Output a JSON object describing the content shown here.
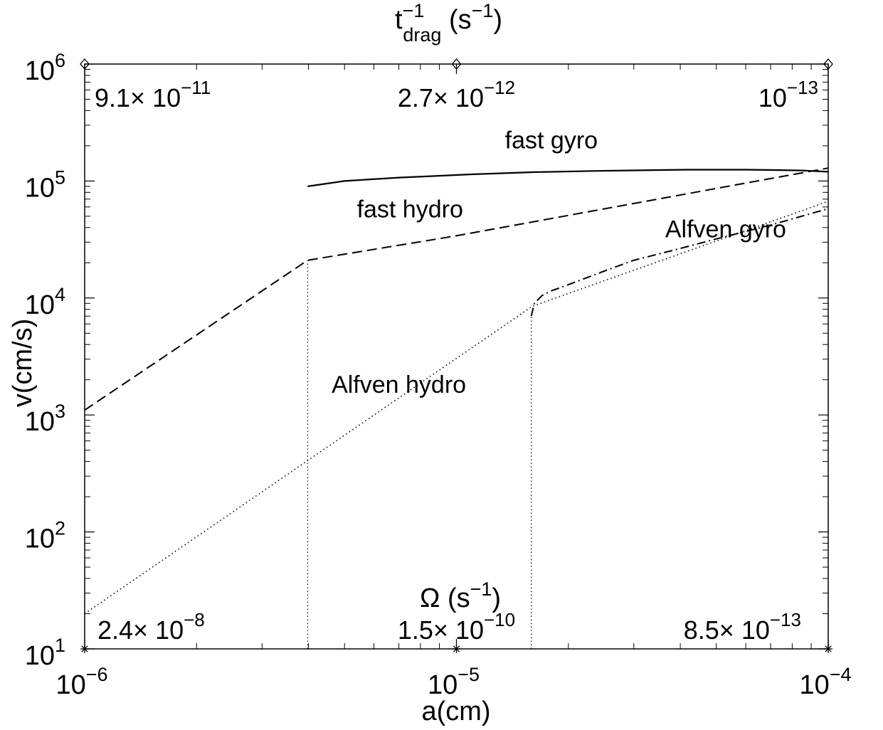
{
  "chart_data": {
    "type": "line",
    "xscale": "log",
    "yscale": "log",
    "xlim": [
      1e-06,
      0.0001
    ],
    "ylim": [
      10,
      1000000
    ],
    "xlabel": "a(cm)",
    "ylabel": "v(cm/s)",
    "top_axis_label": {
      "base": "t",
      "sup": "−1",
      "sub": "drag",
      "unit": "(s",
      "unit_sup": "−1",
      "close": ")"
    },
    "omega_label": {
      "symbol": "Ω",
      "unit": "(s",
      "unit_sup": "−1",
      "close": ")"
    },
    "x_ticks": [
      {
        "value": 1e-06,
        "base": "10",
        "exp": "−6"
      },
      {
        "value": 1e-05,
        "base": "10",
        "exp": "−5"
      },
      {
        "value": 0.0001,
        "base": "10",
        "exp": "−4"
      }
    ],
    "y_ticks": [
      {
        "value": 10,
        "base": "10",
        "exp": "1"
      },
      {
        "value": 100,
        "base": "10",
        "exp": "2"
      },
      {
        "value": 1000,
        "base": "10",
        "exp": "3"
      },
      {
        "value": 10000,
        "base": "10",
        "exp": "4"
      },
      {
        "value": 100000,
        "base": "10",
        "exp": "5"
      },
      {
        "value": 1000000,
        "base": "10",
        "exp": "6"
      }
    ],
    "top_annotations": [
      {
        "x": 1e-06,
        "mantissa": "9.1× 10",
        "exp": "−11"
      },
      {
        "x": 1e-05,
        "mantissa": "2.7× 10",
        "exp": "−12"
      },
      {
        "x": 0.0001,
        "mantissa": "10",
        "exp": "−13"
      }
    ],
    "bottom_annotations": [
      {
        "x": 1e-06,
        "mantissa": "2.4× 10",
        "exp": "−8"
      },
      {
        "x": 1e-05,
        "mantissa": "1.5× 10",
        "exp": "−10"
      },
      {
        "x": 0.0001,
        "mantissa": "8.5× 10",
        "exp": "−13"
      }
    ],
    "series": [
      {
        "name": "fast gyro",
        "style": "solid",
        "x": [
          3.98e-06,
          5e-06,
          7e-06,
          1.1e-05,
          1.6e-05,
          2.4e-05,
          3.5e-05,
          4.2e-05,
          5e-05,
          6e-05,
          7.2e-05,
          8.5e-05,
          0.0001
        ],
        "y": [
          90000,
          100000,
          107000,
          114000,
          119000,
          122000,
          124000,
          125000,
          125000,
          125000,
          124000,
          123000,
          120000
        ]
      },
      {
        "name": "fast hydro",
        "style": "dashed",
        "x": [
          1e-06,
          3.98e-06,
          3.98e-06,
          1e-05,
          0.0001
        ],
        "y": [
          1100,
          21000,
          21000,
          34000,
          129000
        ]
      },
      {
        "name": "Alfven gyro",
        "style": "dashdot",
        "x": [
          1.59e-05,
          1.62e-05,
          1.7e-05,
          1.8e-05,
          2e-05,
          2.5e-05,
          3e-05,
          4e-05,
          5e-05,
          7e-05,
          0.0001
        ],
        "y": [
          7000,
          9000,
          10500,
          11500,
          13000,
          17000,
          21000,
          26500,
          32000,
          42000,
          58000
        ]
      },
      {
        "name": "Alfven hydro",
        "style": "dotted",
        "x": [
          1e-06,
          1.6e-05,
          0.0001
        ],
        "y": [
          20,
          8500,
          67000
        ]
      }
    ],
    "vertical_lines": [
      {
        "x": 3.98e-06,
        "y_from": 10,
        "y_to": 21000
      },
      {
        "x": 1.59e-05,
        "y_from": 10,
        "y_to": 7000
      }
    ],
    "curve_labels": [
      {
        "text": "fast gyro",
        "x": 1.8e-05,
        "y": 190000
      },
      {
        "text": "fast hydro",
        "x": 7.5e-06,
        "y": 49000
      },
      {
        "text": "Alfven gyro",
        "x": 5.3e-05,
        "y": 33000
      },
      {
        "text": "Alfven hydro",
        "x": 7e-06,
        "y": 1550
      }
    ],
    "grid": false
  }
}
